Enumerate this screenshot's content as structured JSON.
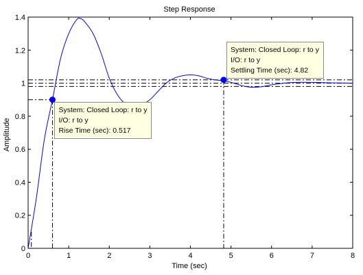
{
  "chart_data": {
    "type": "line",
    "title": "Step Response",
    "xlabel": "Time (sec)",
    "ylabel": "Amplitude",
    "xlim": [
      0,
      8
    ],
    "ylim": [
      0,
      1.4
    ],
    "x_ticks": [
      "0",
      "1",
      "2",
      "3",
      "4",
      "5",
      "6",
      "7",
      "8"
    ],
    "y_ticks": [
      "0",
      "0.2",
      "0.4",
      "0.6",
      "0.8",
      "1",
      "1.2",
      "1.4"
    ],
    "grid": false,
    "line_color": "#0000ff",
    "series": [
      {
        "x": [
          0,
          0.2,
          0.4,
          0.6,
          0.8,
          1.0,
          1.2,
          1.3,
          1.4,
          1.6,
          1.8,
          2.0,
          2.2,
          2.4,
          2.6,
          2.8,
          3.0,
          3.2,
          3.4,
          3.6,
          3.8,
          4.0,
          4.2,
          4.4,
          4.6,
          4.8,
          5.0,
          5.2,
          5.4,
          5.6,
          5.8,
          6.0,
          6.3,
          6.6,
          7.0,
          7.5,
          8.0
        ],
        "y": [
          0,
          0.3,
          0.66,
          0.9,
          1.15,
          1.3,
          1.385,
          1.39,
          1.37,
          1.3,
          1.18,
          1.03,
          0.93,
          0.875,
          0.86,
          0.87,
          0.9,
          0.95,
          1.0,
          1.03,
          1.045,
          1.05,
          1.045,
          1.03,
          1.02,
          1.015,
          1.005,
          0.99,
          0.978,
          0.975,
          0.98,
          0.99,
          1.0,
          1.005,
          1.005,
          1.002,
          1.0
        ]
      }
    ],
    "settling_band": [
      0.98,
      1.02
    ],
    "datatips": [
      {
        "x": 0.6,
        "y": 0.9,
        "lines": [
          "System: Closed Loop: r to y",
          "I/O: r to y",
          "Rise Time (sec): 0.517"
        ]
      },
      {
        "x": 4.82,
        "y": 1.02,
        "lines": [
          "System: Closed Loop: r to y",
          "I/O: r to y",
          "Settling Time (sec): 4.82"
        ]
      }
    ]
  }
}
